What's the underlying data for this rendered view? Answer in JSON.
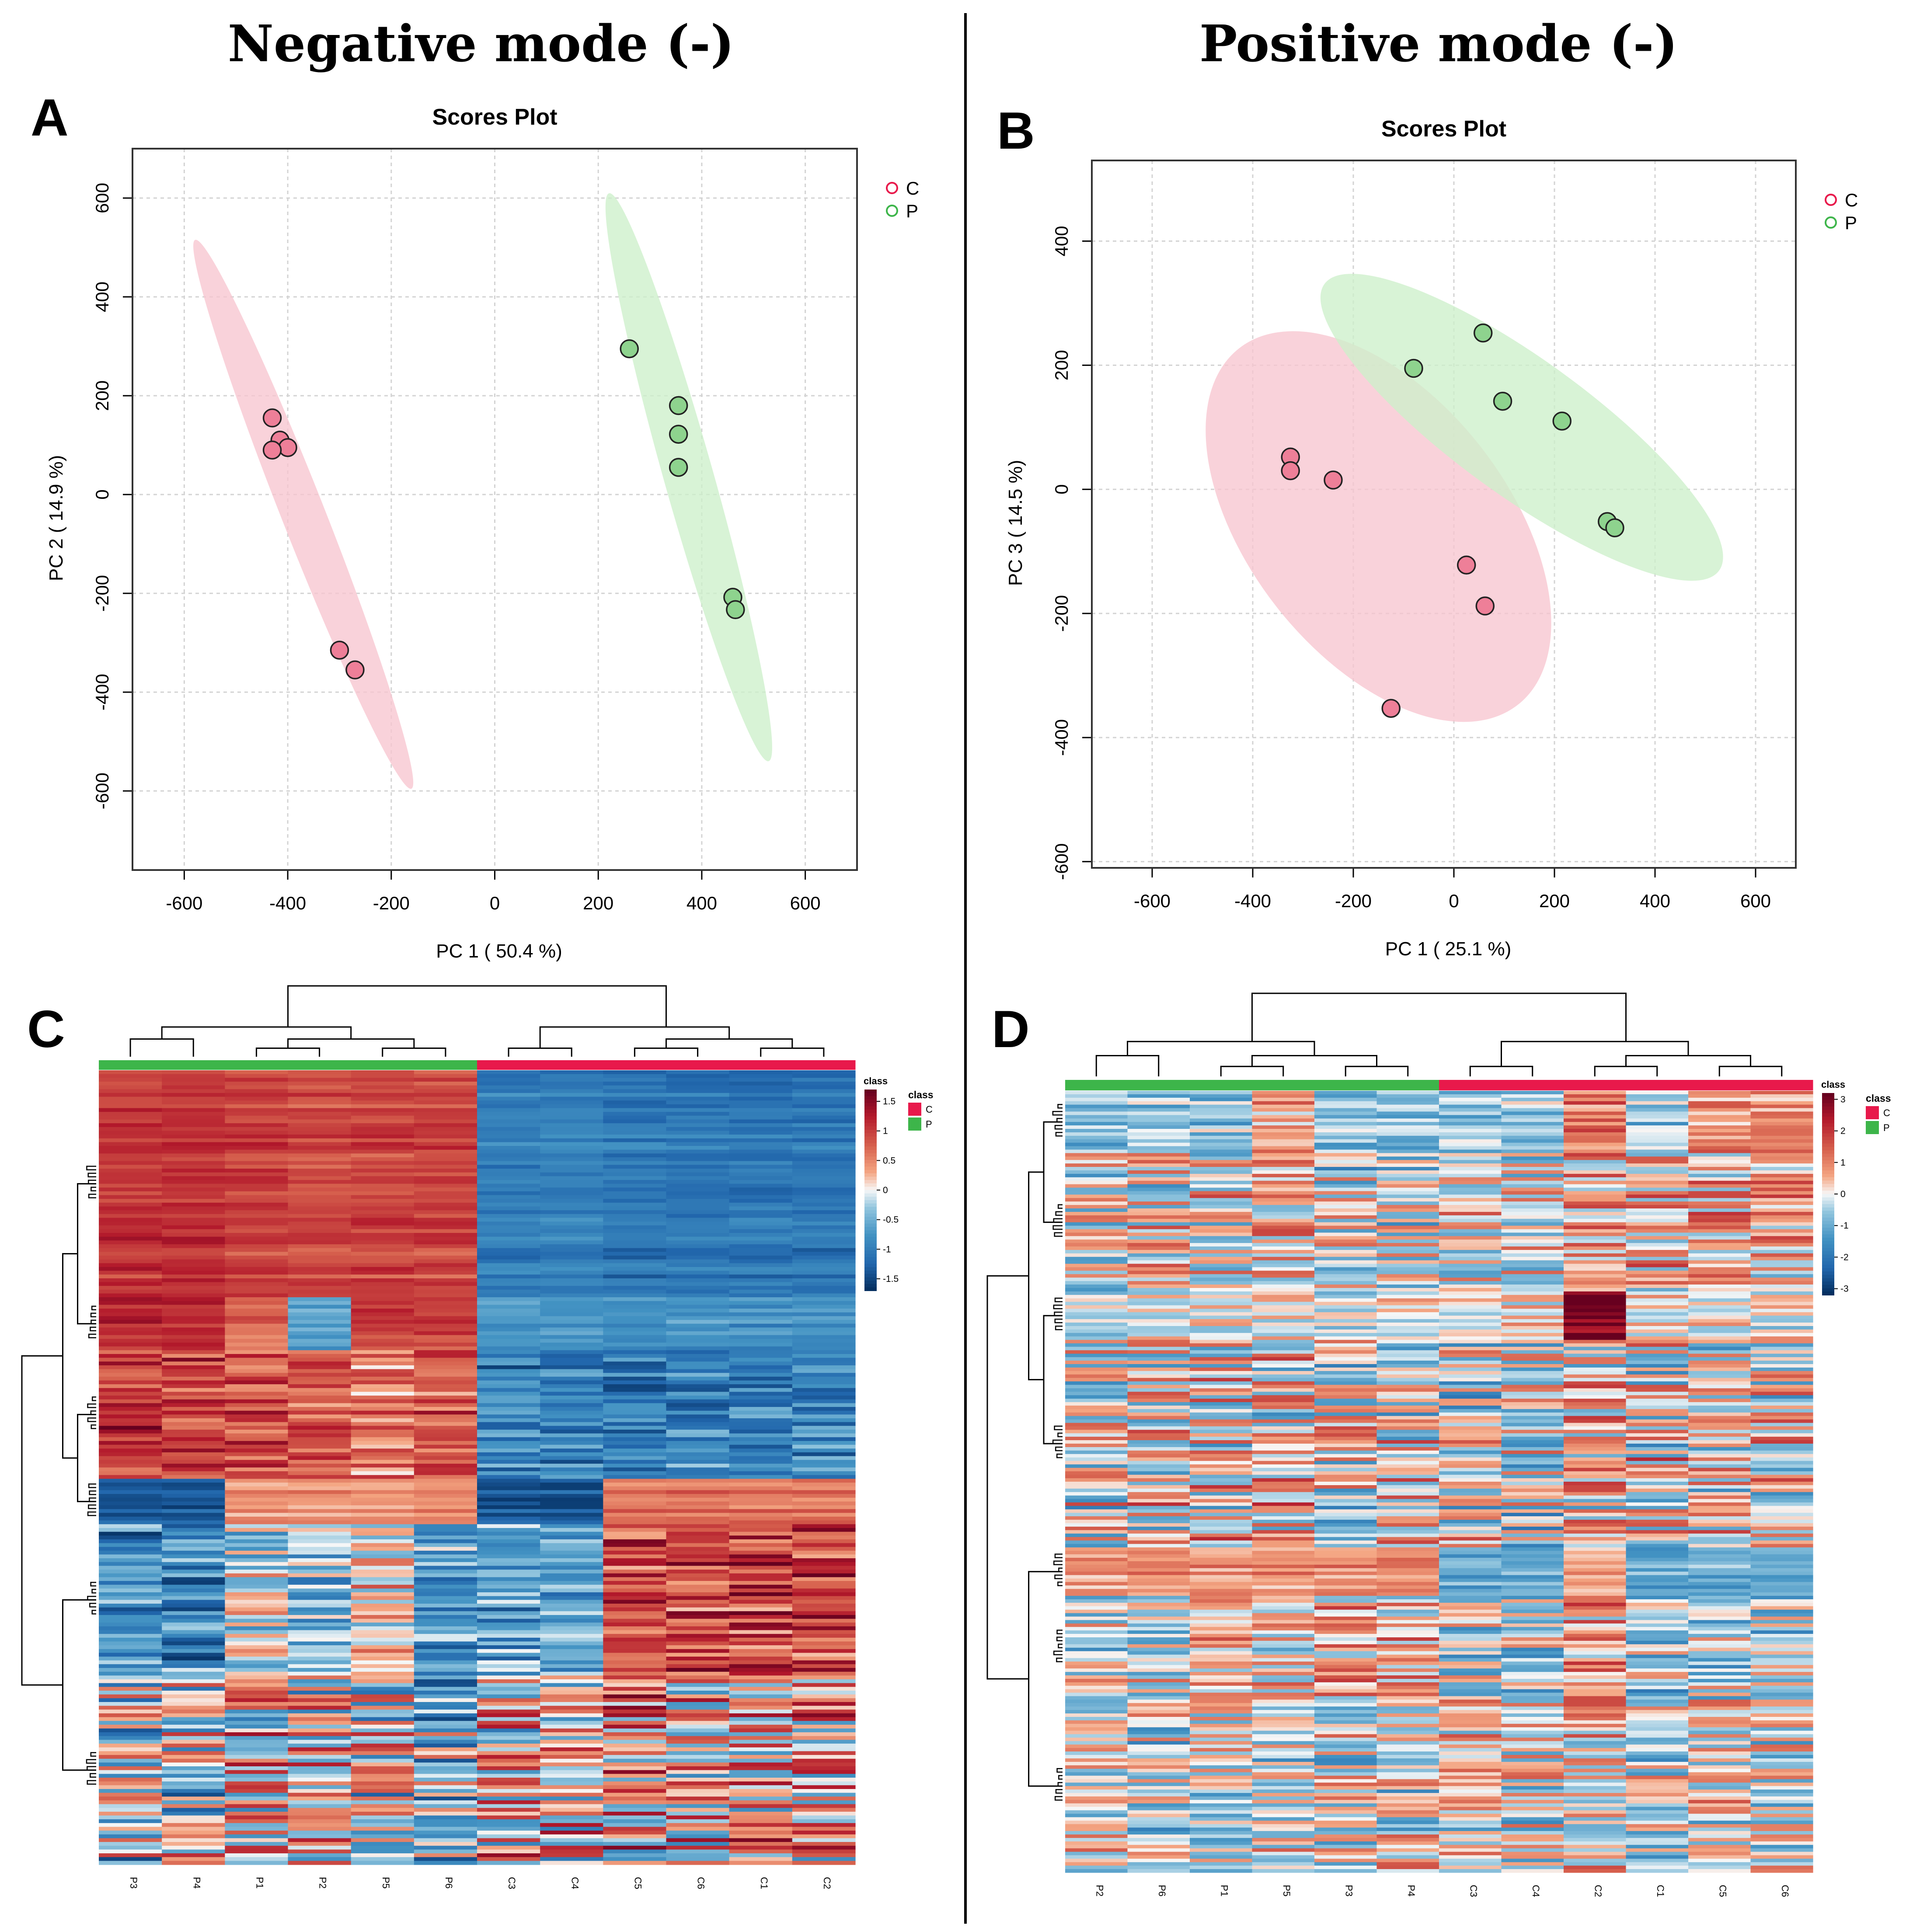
{
  "headings": {
    "left": "Negative mode (-)",
    "right": "Positive mode (-)"
  },
  "panels": {
    "a": "A",
    "b": "B",
    "c": "C",
    "d": "D"
  },
  "colors": {
    "C": "#E8194B",
    "P": "#3DB54A",
    "C_fill": "#F7C5D0",
    "P_fill": "#CDEFCB",
    "C_point": "#EE7F98",
    "P_point": "#8ED38E"
  },
  "chart_data": [
    {
      "id": "A",
      "type": "scatter",
      "title": "Scores Plot",
      "xlabel": "PC 1 ( 50.4 %)",
      "ylabel": "PC 2 ( 14.9 %)",
      "xlim": [
        -700,
        700
      ],
      "ylim": [
        -760,
        700
      ],
      "xticks": [
        "-600",
        "-400",
        "-200",
        "0",
        "200",
        "400",
        "600"
      ],
      "yticks": [
        "-600",
        "-400",
        "-200",
        "0",
        "200",
        "400",
        "600"
      ],
      "grid": true,
      "legend": {
        "position": "top-right",
        "entries": [
          "C",
          "P"
        ]
      },
      "series": [
        {
          "name": "C",
          "x": [
            -430,
            -415,
            -400,
            -430,
            -300,
            -270
          ],
          "y": [
            155,
            110,
            95,
            90,
            -315,
            -355
          ]
        },
        {
          "name": "P",
          "x": [
            260,
            355,
            355,
            355,
            460,
            465
          ],
          "y": [
            295,
            180,
            122,
            55,
            -208,
            -233
          ]
        }
      ]
    },
    {
      "id": "B",
      "type": "scatter",
      "title": "Scores Plot",
      "xlabel": "PC 1 ( 25.1 %)",
      "ylabel": "PC 3 ( 14.5 %)",
      "xlim": [
        -720,
        680
      ],
      "ylim": [
        -610,
        530
      ],
      "xticks": [
        "-600",
        "-400",
        "-200",
        "0",
        "200",
        "400",
        "600"
      ],
      "yticks": [
        "-600",
        "-400",
        "-200",
        "0",
        "200",
        "400"
      ],
      "grid": true,
      "legend": {
        "position": "top-right",
        "entries": [
          "C",
          "P"
        ]
      },
      "series": [
        {
          "name": "C",
          "x": [
            -325,
            -325,
            -240,
            25,
            62,
            -125
          ],
          "y": [
            52,
            30,
            15,
            -122,
            -188,
            -353
          ]
        },
        {
          "name": "P",
          "x": [
            -80,
            58,
            97,
            215,
            305,
            320
          ],
          "y": [
            195,
            252,
            142,
            110,
            -52,
            -62
          ]
        }
      ]
    },
    {
      "id": "C",
      "type": "heatmap",
      "columns": [
        "P3",
        "P4",
        "P1",
        "P2",
        "P5",
        "P6",
        "C3",
        "C4",
        "C5",
        "C6",
        "C1",
        "C2"
      ],
      "classes": [
        "P",
        "P",
        "P",
        "P",
        "P",
        "P",
        "C",
        "C",
        "C",
        "C",
        "C",
        "C"
      ],
      "legend_title": "class",
      "legend_entries": [
        "C",
        "P"
      ],
      "colorbar_title": "class",
      "colorbar_ticks": [
        "1.5",
        "1",
        "0.5",
        "0",
        "-0.5",
        "-1",
        "-1.5"
      ],
      "colorbar_range": [
        -1.7,
        1.7
      ]
    },
    {
      "id": "D",
      "type": "heatmap",
      "columns": [
        "P2",
        "P6",
        "P1",
        "P5",
        "P3",
        "P4",
        "C3",
        "C4",
        "C2",
        "C1",
        "C5",
        "C6"
      ],
      "classes": [
        "P",
        "P",
        "P",
        "P",
        "P",
        "P",
        "C",
        "C",
        "C",
        "C",
        "C",
        "C"
      ],
      "legend_title": "class",
      "legend_entries": [
        "C",
        "P"
      ],
      "colorbar_title": "class",
      "colorbar_ticks": [
        "3",
        "2",
        "1",
        "0",
        "-1",
        "-2",
        "-3"
      ],
      "colorbar_range": [
        -3.2,
        3.2
      ]
    }
  ]
}
